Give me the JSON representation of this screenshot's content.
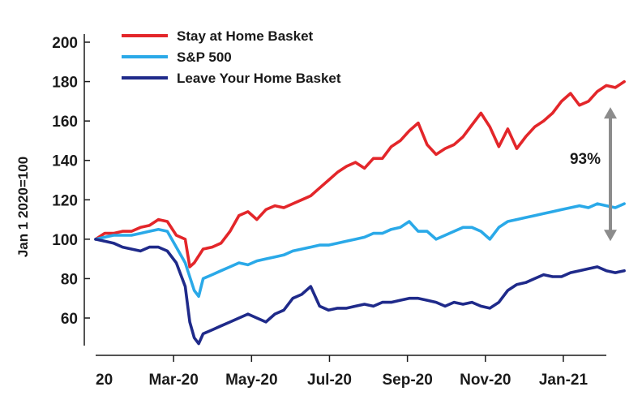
{
  "chart_data": {
    "type": "line",
    "title": "",
    "xlabel": "",
    "ylabel": "Jan 1 2020=100",
    "ylim": [
      45,
      200
    ],
    "yticks": [
      60,
      80,
      100,
      120,
      140,
      160,
      180,
      200
    ],
    "x_ticks": [
      {
        "label": "20",
        "week": 0
      },
      {
        "label": "Mar-20",
        "week": 8.7
      },
      {
        "label": "May-20",
        "week": 17.4
      },
      {
        "label": "Jul-20",
        "week": 26.1
      },
      {
        "label": "Sep-20",
        "week": 34.8
      },
      {
        "label": "Nov-20",
        "week": 43.5
      },
      {
        "label": "Jan-21",
        "week": 52.2
      }
    ],
    "x_range_weeks": [
      0,
      57
    ],
    "series": [
      {
        "name": "Stay at Home Basket",
        "color": "#e3262a",
        "points": [
          [
            0,
            100
          ],
          [
            1,
            103
          ],
          [
            2,
            103
          ],
          [
            3,
            104
          ],
          [
            4,
            104
          ],
          [
            5,
            106
          ],
          [
            6,
            107
          ],
          [
            7,
            110
          ],
          [
            8,
            109
          ],
          [
            9,
            102
          ],
          [
            10,
            100
          ],
          [
            10.5,
            86
          ],
          [
            11,
            88
          ],
          [
            12,
            95
          ],
          [
            13,
            96
          ],
          [
            14,
            98
          ],
          [
            15,
            104
          ],
          [
            16,
            112
          ],
          [
            17,
            114
          ],
          [
            18,
            110
          ],
          [
            19,
            115
          ],
          [
            20,
            117
          ],
          [
            21,
            116
          ],
          [
            22,
            118
          ],
          [
            23,
            120
          ],
          [
            24,
            122
          ],
          [
            25,
            126
          ],
          [
            26,
            130
          ],
          [
            27,
            134
          ],
          [
            28,
            137
          ],
          [
            29,
            139
          ],
          [
            30,
            136
          ],
          [
            31,
            141
          ],
          [
            32,
            141
          ],
          [
            33,
            147
          ],
          [
            34,
            150
          ],
          [
            35,
            155
          ],
          [
            36,
            159
          ],
          [
            37,
            148
          ],
          [
            38,
            143
          ],
          [
            39,
            146
          ],
          [
            40,
            148
          ],
          [
            41,
            152
          ],
          [
            42,
            158
          ],
          [
            43,
            164
          ],
          [
            44,
            157
          ],
          [
            45,
            147
          ],
          [
            46,
            156
          ],
          [
            47,
            146
          ],
          [
            48,
            152
          ],
          [
            49,
            157
          ],
          [
            50,
            160
          ],
          [
            51,
            164
          ],
          [
            52,
            170
          ],
          [
            53,
            174
          ],
          [
            54,
            168
          ],
          [
            55,
            170
          ],
          [
            56,
            175
          ],
          [
            57,
            178
          ],
          [
            58,
            177
          ],
          [
            59,
            180
          ]
        ]
      },
      {
        "name": "S&P 500",
        "color": "#2aa9e8",
        "points": [
          [
            0,
            100
          ],
          [
            1,
            101
          ],
          [
            2,
            102
          ],
          [
            3,
            102
          ],
          [
            4,
            102
          ],
          [
            5,
            103
          ],
          [
            6,
            104
          ],
          [
            7,
            105
          ],
          [
            8,
            104
          ],
          [
            9,
            96
          ],
          [
            10,
            88
          ],
          [
            11,
            74
          ],
          [
            11.5,
            71
          ],
          [
            12,
            80
          ],
          [
            13,
            82
          ],
          [
            14,
            84
          ],
          [
            15,
            86
          ],
          [
            16,
            88
          ],
          [
            17,
            87
          ],
          [
            18,
            89
          ],
          [
            19,
            90
          ],
          [
            20,
            91
          ],
          [
            21,
            92
          ],
          [
            22,
            94
          ],
          [
            23,
            95
          ],
          [
            24,
            96
          ],
          [
            25,
            97
          ],
          [
            26,
            97
          ],
          [
            27,
            98
          ],
          [
            28,
            99
          ],
          [
            29,
            100
          ],
          [
            30,
            101
          ],
          [
            31,
            103
          ],
          [
            32,
            103
          ],
          [
            33,
            105
          ],
          [
            34,
            106
          ],
          [
            35,
            109
          ],
          [
            36,
            104
          ],
          [
            37,
            104
          ],
          [
            38,
            100
          ],
          [
            39,
            102
          ],
          [
            40,
            104
          ],
          [
            41,
            106
          ],
          [
            42,
            106
          ],
          [
            43,
            104
          ],
          [
            44,
            100
          ],
          [
            45,
            106
          ],
          [
            46,
            109
          ],
          [
            47,
            110
          ],
          [
            48,
            111
          ],
          [
            49,
            112
          ],
          [
            50,
            113
          ],
          [
            51,
            114
          ],
          [
            52,
            115
          ],
          [
            53,
            116
          ],
          [
            54,
            117
          ],
          [
            55,
            116
          ],
          [
            56,
            118
          ],
          [
            57,
            117
          ],
          [
            58,
            116
          ],
          [
            59,
            118
          ]
        ]
      },
      {
        "name": "Leave Your Home Basket",
        "color": "#1f2a8a",
        "points": [
          [
            0,
            100
          ],
          [
            1,
            99
          ],
          [
            2,
            98
          ],
          [
            3,
            96
          ],
          [
            4,
            95
          ],
          [
            5,
            94
          ],
          [
            6,
            96
          ],
          [
            7,
            96
          ],
          [
            8,
            94
          ],
          [
            9,
            88
          ],
          [
            10,
            76
          ],
          [
            10.5,
            58
          ],
          [
            11,
            50
          ],
          [
            11.5,
            47
          ],
          [
            12,
            52
          ],
          [
            13,
            54
          ],
          [
            14,
            56
          ],
          [
            15,
            58
          ],
          [
            16,
            60
          ],
          [
            17,
            62
          ],
          [
            18,
            60
          ],
          [
            19,
            58
          ],
          [
            20,
            62
          ],
          [
            21,
            64
          ],
          [
            22,
            70
          ],
          [
            23,
            72
          ],
          [
            24,
            76
          ],
          [
            25,
            66
          ],
          [
            26,
            64
          ],
          [
            27,
            65
          ],
          [
            28,
            65
          ],
          [
            29,
            66
          ],
          [
            30,
            67
          ],
          [
            31,
            66
          ],
          [
            32,
            68
          ],
          [
            33,
            68
          ],
          [
            34,
            69
          ],
          [
            35,
            70
          ],
          [
            36,
            70
          ],
          [
            37,
            69
          ],
          [
            38,
            68
          ],
          [
            39,
            66
          ],
          [
            40,
            68
          ],
          [
            41,
            67
          ],
          [
            42,
            68
          ],
          [
            43,
            66
          ],
          [
            44,
            65
          ],
          [
            45,
            68
          ],
          [
            46,
            74
          ],
          [
            47,
            77
          ],
          [
            48,
            78
          ],
          [
            49,
            80
          ],
          [
            50,
            82
          ],
          [
            51,
            81
          ],
          [
            52,
            81
          ],
          [
            53,
            83
          ],
          [
            54,
            84
          ],
          [
            55,
            85
          ],
          [
            56,
            86
          ],
          [
            57,
            84
          ],
          [
            58,
            83
          ],
          [
            59,
            84
          ]
        ]
      }
    ],
    "annotations": [
      {
        "text": "93%",
        "type": "double-arrow",
        "from": 99,
        "to": 167
      }
    ],
    "legend": "top-left"
  }
}
